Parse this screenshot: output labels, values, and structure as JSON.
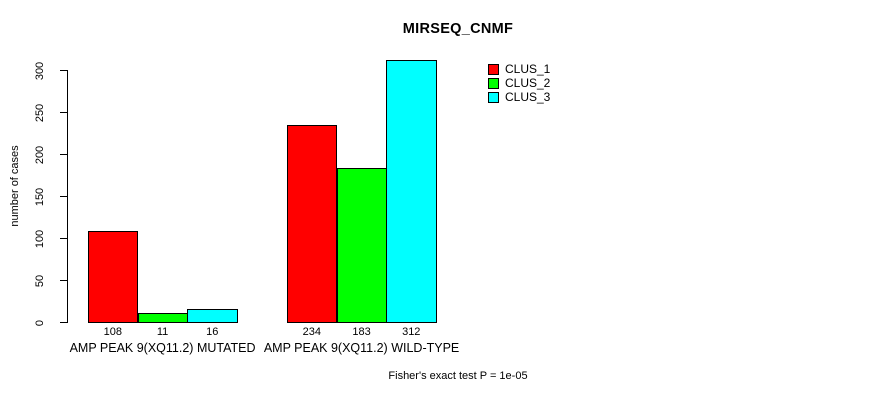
{
  "chart_data": {
    "type": "bar",
    "title": "MIRSEQ_CNMF",
    "ylabel": "number of cases",
    "xlabel": "",
    "ylim": [
      0,
      300
    ],
    "yticks": [
      0,
      50,
      100,
      150,
      200,
      250,
      300
    ],
    "grid": false,
    "legend_position": "top-right-inside",
    "categories": [
      "AMP PEAK 9(XQ11.2) MUTATED",
      "AMP PEAK 9(XQ11.2) WILD-TYPE"
    ],
    "series": [
      {
        "name": "CLUS_1",
        "color": "#FF0000",
        "values": [
          108,
          234
        ]
      },
      {
        "name": "CLUS_2",
        "color": "#00FF00",
        "values": [
          11,
          183
        ]
      },
      {
        "name": "CLUS_3",
        "color": "#00FFFF",
        "values": [
          16,
          312
        ]
      }
    ],
    "bar_value_labels": [
      [
        "108",
        "11",
        "16"
      ],
      [
        "234",
        "183",
        "312"
      ]
    ],
    "annotation": "Fisher's exact test P = 1e-05"
  }
}
